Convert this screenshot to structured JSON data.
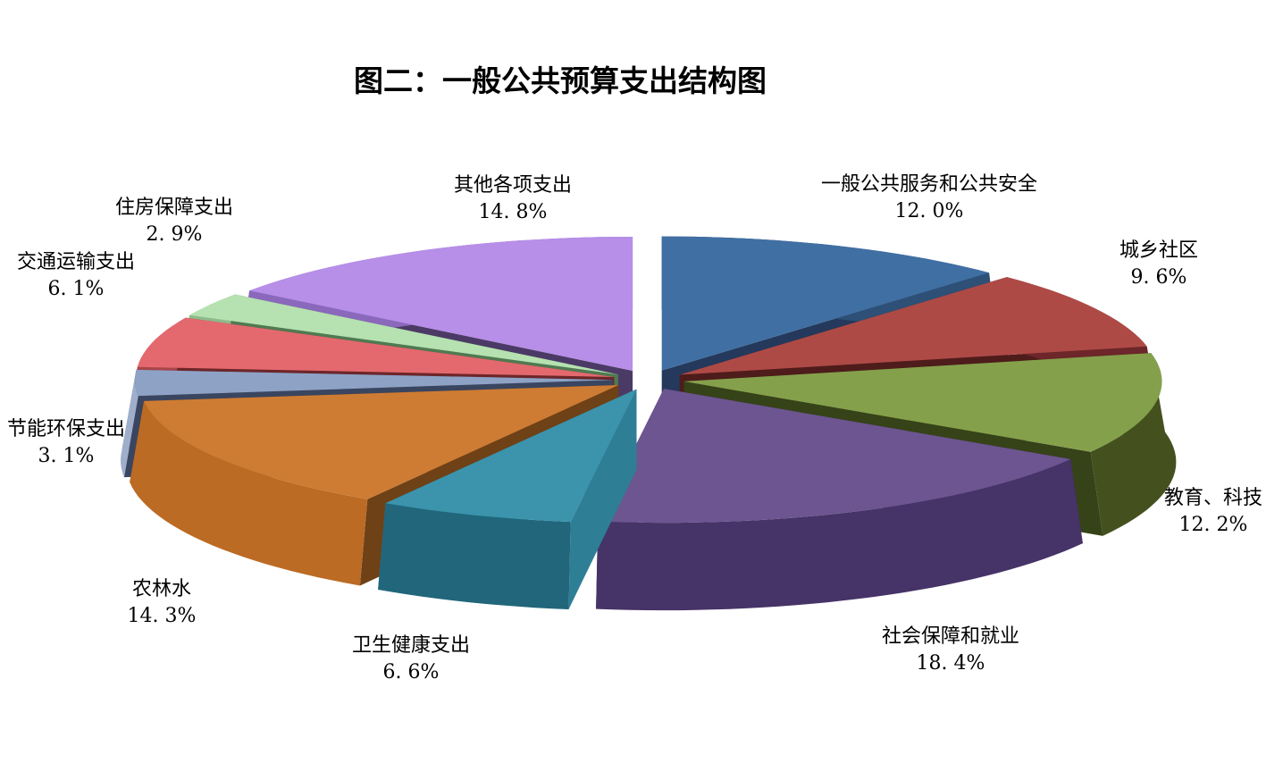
{
  "title": "图二：一般公共预算支出结构图",
  "chart_data": {
    "type": "pie",
    "projection": "3d-exploded",
    "title": "图二：一般公共预算支出结构图",
    "unit": "%",
    "direction": "clockwise",
    "start_angle_deg": -90,
    "legend_position": "none",
    "background": "#FFFFFF",
    "categories": [
      "一般公共服务和公共安全",
      "城乡社区",
      "教育、科技",
      "社会保障和就业",
      "卫生健康支出",
      "农林水",
      "节能环保支出",
      "交通运输支出",
      "住房保障支出",
      "其他各项支出"
    ],
    "values": [
      12.0,
      9.6,
      12.2,
      18.4,
      6.6,
      14.3,
      3.1,
      6.1,
      2.9,
      14.8
    ],
    "value_labels": [
      "12. 0%",
      "9. 6%",
      "12. 2%",
      "18. 4%",
      "6. 6%",
      "14. 3%",
      "3. 1%",
      "6. 1%",
      "2. 9%",
      "14. 8%"
    ],
    "colors": [
      {
        "top": "#406FA3",
        "side": "#2E5077",
        "edge": "#24395B"
      },
      {
        "top": "#AE4A46",
        "side": "#6D2629",
        "edge": "#4E1C1B"
      },
      {
        "top": "#85A04B",
        "side": "#44511F",
        "edge": "#364218"
      },
      {
        "top": "#6C5590",
        "side": "#463367",
        "edge": "#352852"
      },
      {
        "top": "#3B93AC",
        "side": "#21667B",
        "edge": "#2E7E96"
      },
      {
        "top": "#CE7C33",
        "side": "#BC6B24",
        "edge": "#6E4117"
      },
      {
        "top": "#8EA2C6",
        "side": "#9FAECB",
        "edge": "#3A4560"
      },
      {
        "top": "#E4696E",
        "side": "#A84548",
        "edge": "#6D2629"
      },
      {
        "top": "#B6E1B0",
        "side": "#8FBA8B",
        "edge": "#4F7A52"
      },
      {
        "top": "#B78EE8",
        "side": "#8A68BC",
        "edge": "#4C3A66"
      }
    ]
  }
}
